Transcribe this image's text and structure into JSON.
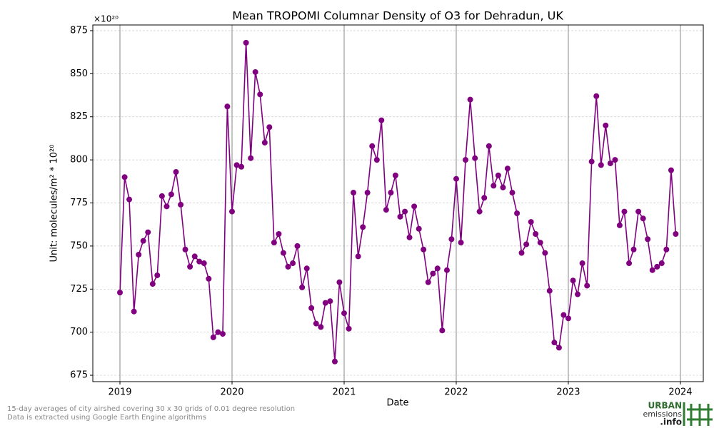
{
  "chart_data": {
    "type": "line",
    "title": "Mean TROPOMI Columnar Density of O3 for Dehradun, UK",
    "xlabel": "Date",
    "ylabel": "Unit: molecules/m² * 10²⁰",
    "offset_label": "×10²⁰",
    "footnotes": [
      "15-day averages of city airshed covering 30 x 30 grids of 0.01 degree resolution",
      "Data is extracted using Google Earth Engine algorithms"
    ],
    "logo": [
      "URBAN",
      "emissions",
      ".info"
    ],
    "x": [
      2019,
      2019.042,
      2019.083,
      2019.125,
      2019.167,
      2019.208,
      2019.25,
      2019.292,
      2019.333,
      2019.375,
      2019.417,
      2019.458,
      2019.5,
      2019.542,
      2019.583,
      2019.625,
      2019.667,
      2019.708,
      2019.75,
      2019.792,
      2019.833,
      2019.875,
      2019.917,
      2019.958,
      2020,
      2020.042,
      2020.083,
      2020.125,
      2020.167,
      2020.208,
      2020.25,
      2020.292,
      2020.333,
      2020.375,
      2020.417,
      2020.458,
      2020.5,
      2020.542,
      2020.583,
      2020.625,
      2020.667,
      2020.708,
      2020.75,
      2020.792,
      2020.833,
      2020.875,
      2020.917,
      2020.958,
      2021,
      2021.042,
      2021.083,
      2021.125,
      2021.167,
      2021.208,
      2021.25,
      2021.292,
      2021.333,
      2021.375,
      2021.417,
      2021.458,
      2021.5,
      2021.542,
      2021.583,
      2021.625,
      2021.667,
      2021.708,
      2021.75,
      2021.792,
      2021.833,
      2021.875,
      2021.917,
      2021.958,
      2022,
      2022.042,
      2022.083,
      2022.125,
      2022.167,
      2022.208,
      2022.25,
      2022.292,
      2022.333,
      2022.375,
      2022.417,
      2022.458,
      2022.5,
      2022.542,
      2022.583,
      2022.625,
      2022.667,
      2022.708,
      2022.75,
      2022.792,
      2022.833,
      2022.875,
      2022.917,
      2022.958,
      2023,
      2023.042,
      2023.083,
      2023.125,
      2023.167,
      2023.208,
      2023.25,
      2023.292,
      2023.333,
      2023.375,
      2023.417,
      2023.458,
      2023.5,
      2023.542,
      2023.583,
      2023.625,
      2023.667,
      2023.708,
      2023.75,
      2023.792,
      2023.833,
      2023.875,
      2023.917,
      2023.958
    ],
    "series": [
      {
        "color": "#800080",
        "values": [
          723,
          790,
          777,
          712,
          745,
          753,
          758,
          728,
          733,
          779,
          773,
          780,
          793,
          774,
          748,
          738,
          744,
          741,
          740,
          731,
          697,
          700,
          699,
          831,
          770,
          797,
          796,
          868,
          801,
          851,
          838,
          810,
          819,
          752,
          757,
          746,
          738,
          740,
          750,
          726,
          737,
          714,
          705,
          703,
          717,
          718,
          683,
          729,
          711,
          702,
          781,
          744,
          761,
          781,
          808,
          800,
          823,
          771,
          781,
          791,
          767,
          770,
          755,
          773,
          760,
          748,
          729,
          734,
          737,
          701,
          736,
          754,
          789,
          752,
          800,
          835,
          801,
          770,
          778,
          808,
          785,
          791,
          784,
          795,
          781,
          769,
          746,
          751,
          764,
          757,
          752,
          746,
          724,
          694,
          691,
          710,
          708,
          730,
          722,
          740,
          727,
          799,
          837,
          797,
          820,
          798,
          800,
          762,
          770,
          740,
          748,
          770,
          766,
          754,
          736,
          738,
          740,
          748,
          794,
          757
        ]
      }
    ],
    "xlim": [
      2018.758,
      2024.204
    ],
    "xticks": [
      2019,
      2020,
      2021,
      2022,
      2023,
      2024
    ],
    "ylim": [
      671.3,
      878.3
    ],
    "yticks": [
      675,
      700,
      725,
      750,
      775,
      800,
      825,
      850,
      875
    ],
    "grid": true
  }
}
